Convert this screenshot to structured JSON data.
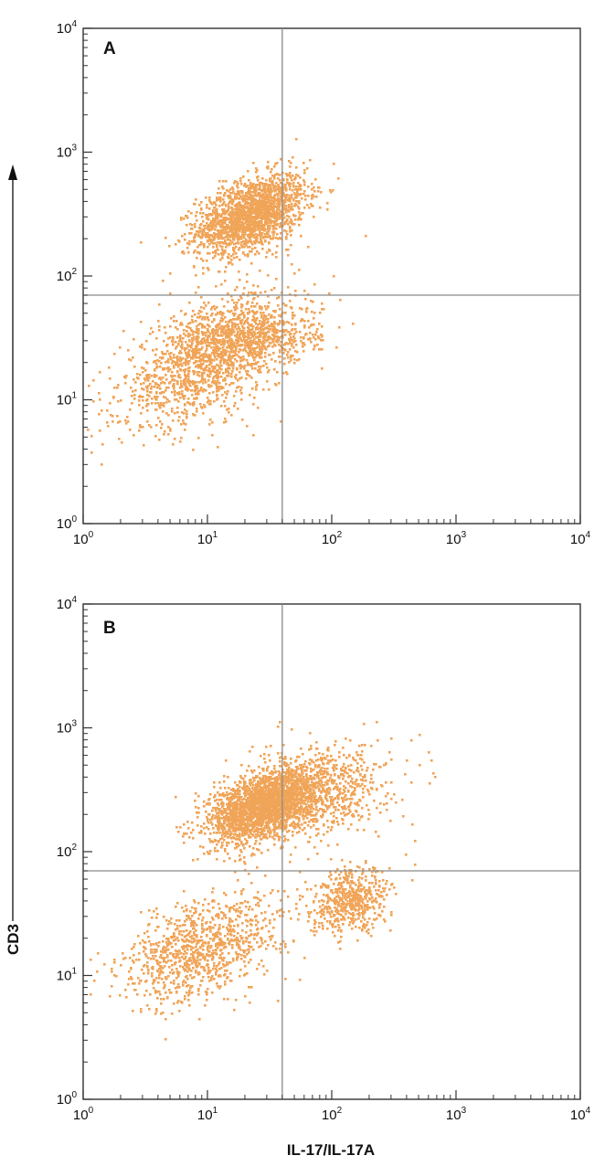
{
  "chart_data": [
    {
      "type": "scatter",
      "panel_label": "A",
      "x_scale": "log",
      "y_scale": "log",
      "xlim": [
        1,
        10000
      ],
      "ylim": [
        1,
        10000
      ],
      "x_tick_values": [
        1,
        10,
        100,
        1000,
        10000
      ],
      "y_tick_values": [
        1,
        10,
        100,
        1000,
        10000
      ],
      "quadrant_gate": {
        "x": 40,
        "y": 70
      },
      "point_color": "#f0a458",
      "populations": [
        {
          "x_center": 22,
          "y_center": 320,
          "x_spread_decades": 0.22,
          "y_spread_decades": 0.16,
          "count": 1900,
          "corr": 0.45
        },
        {
          "x_center": 10,
          "y_center": 22,
          "x_spread_decades": 0.35,
          "y_spread_decades": 0.26,
          "count": 1500,
          "corr": 0.55
        },
        {
          "x_center": 25,
          "y_center": 32,
          "x_spread_decades": 0.25,
          "y_spread_decades": 0.12,
          "count": 500,
          "corr": 0.2
        }
      ]
    },
    {
      "type": "scatter",
      "panel_label": "B",
      "x_scale": "log",
      "y_scale": "log",
      "xlim": [
        1,
        10000
      ],
      "ylim": [
        1,
        10000
      ],
      "x_tick_values": [
        1,
        10,
        100,
        1000,
        10000
      ],
      "y_tick_values": [
        1,
        10,
        100,
        1000,
        10000
      ],
      "quadrant_gate": {
        "x": 40,
        "y": 70
      },
      "point_color": "#f0a458",
      "populations": [
        {
          "x_center": 28,
          "y_center": 240,
          "x_spread_decades": 0.22,
          "y_spread_decades": 0.15,
          "count": 2400,
          "corr": 0.45
        },
        {
          "x_center": 80,
          "y_center": 320,
          "x_spread_decades": 0.28,
          "y_spread_decades": 0.18,
          "count": 700,
          "corr": 0.2
        },
        {
          "x_center": 9,
          "y_center": 17,
          "x_spread_decades": 0.32,
          "y_spread_decades": 0.22,
          "count": 1000,
          "corr": 0.45
        },
        {
          "x_center": 140,
          "y_center": 40,
          "x_spread_decades": 0.16,
          "y_spread_decades": 0.13,
          "count": 550,
          "corr": 0.2
        }
      ]
    }
  ],
  "axis_titles": {
    "x": "IL-17/IL-17A",
    "y": "CD3"
  }
}
